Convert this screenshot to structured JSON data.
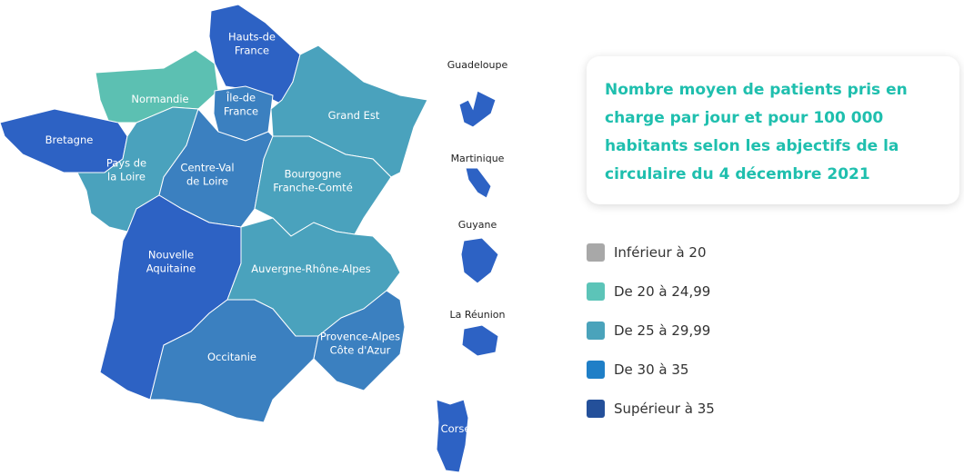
{
  "title": "Nombre moyen de patients pris en charge par jour et pour 100 000 habitants selon les abjectifs de la circulaire du 4 décembre 2021",
  "regions": [
    {
      "label": [
        "Hauts-de",
        "France"
      ],
      "color": "#2d62c4"
    },
    {
      "label": [
        "Normandie"
      ],
      "color": "#5cc0b2"
    },
    {
      "label": [
        "Île-de",
        "France"
      ],
      "color": "#3b80c0"
    },
    {
      "label": [
        "Grand Est"
      ],
      "color": "#4aa2bd"
    },
    {
      "label": [
        "Bretagne"
      ],
      "color": "#2d62c4"
    },
    {
      "label": [
        "Pays de",
        "la Loire"
      ],
      "color": "#4aa2bd"
    },
    {
      "label": [
        "Centre-Val",
        "de Loire"
      ],
      "color": "#3b80c0"
    },
    {
      "label": [
        "Bourgogne",
        "Franche-Comté"
      ],
      "color": "#4aa2bd"
    },
    {
      "label": [
        "Nouvelle",
        "Aquitaine"
      ],
      "color": "#2d62c4"
    },
    {
      "label": [
        "Auvergne-Rhône-Alpes"
      ],
      "color": "#4aa2bd"
    },
    {
      "label": [
        "Occitanie"
      ],
      "color": "#3b80c0"
    },
    {
      "label": [
        "Provence-Alpes",
        "Côte d'Azur"
      ],
      "color": "#3b80c0"
    },
    {
      "label": [
        "Corse"
      ],
      "color": "#2d62c4"
    }
  ],
  "overseas": [
    {
      "label": "Guadeloupe",
      "color": "#2d62c4"
    },
    {
      "label": "Martinique",
      "color": "#2d62c4"
    },
    {
      "label": "Guyane",
      "color": "#2d62c4"
    },
    {
      "label": "La Réunion",
      "color": "#2d62c4"
    }
  ],
  "legend": [
    {
      "label": "Inférieur à 20",
      "color": "#a8a8a8"
    },
    {
      "label": "De 20 à 24,99",
      "color": "#5cc4b8"
    },
    {
      "label": "De 25 à 29,99",
      "color": "#4aa3bb"
    },
    {
      "label": "De 30 à 35",
      "color": "#1f7fc7"
    },
    {
      "label": "Supérieur à 35",
      "color": "#24509a"
    }
  ]
}
